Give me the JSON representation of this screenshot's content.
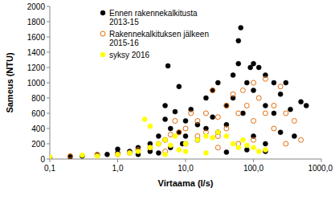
{
  "chart_data": {
    "type": "scatter",
    "x_label": "Virtaama (l/s)",
    "y_label": "Sameus (NTU)",
    "log": "x",
    "grid": false,
    "legend": "top-left",
    "xlim": [
      0.1,
      1000
    ],
    "ylim": [
      0,
      2000
    ],
    "xticks": [
      {
        "value": 0.1,
        "label": "0,1"
      },
      {
        "value": 1,
        "label": "1,0"
      },
      {
        "value": 10,
        "label": "10,0"
      },
      {
        "value": 100,
        "label": "100,0"
      },
      {
        "value": 1000,
        "label": "1000,0"
      }
    ],
    "yticks": [
      0,
      200,
      400,
      600,
      800,
      1000,
      1200,
      1400,
      1600,
      1800,
      2000
    ],
    "series": [
      {
        "name": "Ennen rakennekalkitusta 2013-15",
        "color": "#000000",
        "marker": "circle",
        "x": [
          0.1,
          0.2,
          0.3,
          0.5,
          0.7,
          1,
          1,
          1.5,
          2,
          2,
          3,
          3,
          4,
          4,
          5,
          5,
          5,
          5.5,
          6,
          6,
          7,
          8,
          8,
          9,
          10,
          10,
          12,
          15,
          15,
          20,
          20,
          25,
          25,
          30,
          30,
          40,
          40,
          50,
          50,
          60,
          65,
          60,
          70,
          80,
          90,
          100,
          100,
          100,
          120,
          150,
          150,
          150,
          200,
          200,
          250,
          250,
          300,
          350,
          400,
          500,
          600,
          150,
          80,
          40
        ],
        "values": [
          20,
          30,
          40,
          50,
          60,
          80,
          130,
          100,
          150,
          60,
          200,
          100,
          300,
          80,
          520,
          250,
          700,
          1220,
          400,
          150,
          620,
          350,
          950,
          200,
          500,
          300,
          650,
          450,
          250,
          800,
          400,
          900,
          550,
          350,
          1000,
          700,
          450,
          1100,
          800,
          1550,
          1720,
          1250,
          600,
          1000,
          1200,
          1250,
          900,
          300,
          1200,
          1100,
          700,
          200,
          1000,
          600,
          850,
          350,
          1000,
          650,
          300,
          750,
          700,
          100,
          120,
          90
        ]
      },
      {
        "name": "Rakennekalkituksen jälkeen 2015-16",
        "color": "#e46c0a",
        "marker": "circle-open",
        "x": [
          0.2,
          0.5,
          1,
          1.5,
          2,
          3,
          4,
          5,
          5,
          6,
          7,
          8,
          10,
          10,
          12,
          15,
          15,
          20,
          20,
          25,
          30,
          30,
          40,
          40,
          50,
          60,
          70,
          80,
          100,
          100,
          100,
          120,
          150,
          150,
          200,
          200,
          250,
          300,
          300,
          400,
          500,
          60,
          30
        ],
        "values": [
          40,
          60,
          60,
          80,
          120,
          150,
          200,
          250,
          100,
          320,
          500,
          350,
          400,
          200,
          600,
          500,
          300,
          600,
          350,
          900,
          550,
          300,
          700,
          400,
          850,
          600,
          900,
          700,
          1000,
          500,
          250,
          800,
          1050,
          600,
          700,
          400,
          950,
          600,
          200,
          500,
          250,
          200,
          150
        ]
      },
      {
        "name": "syksy 2016",
        "color": "#ffff00",
        "marker": "circle",
        "x": [
          0.1,
          0.3,
          0.5,
          1,
          1.5,
          2,
          2.5,
          3,
          3,
          4,
          5,
          6,
          7,
          8,
          10,
          10,
          15,
          20,
          25,
          30,
          40,
          50,
          60,
          70,
          80,
          100,
          120,
          150,
          20,
          5
        ],
        "values": [
          30,
          50,
          40,
          60,
          80,
          100,
          520,
          430,
          150,
          200,
          250,
          180,
          300,
          120,
          200,
          100,
          250,
          300,
          280,
          350,
          300,
          200,
          150,
          250,
          180,
          150,
          100,
          120,
          80,
          60
        ]
      }
    ]
  }
}
